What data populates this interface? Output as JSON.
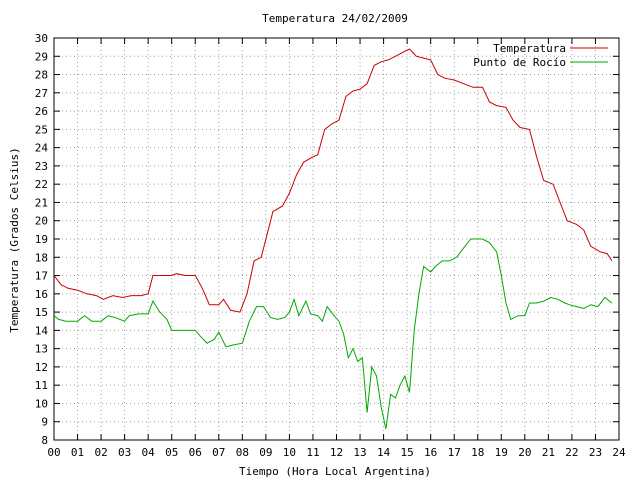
{
  "chart_data": {
    "type": "line",
    "title": "Temperatura 24/02/2009",
    "xlabel": "Tiempo (Hora Local Argentina)",
    "ylabel": "Temperatura (Grados Celsius)",
    "xlim": [
      0,
      24
    ],
    "ylim": [
      8,
      30
    ],
    "x_ticks": [
      "00",
      "01",
      "02",
      "03",
      "04",
      "05",
      "06",
      "07",
      "08",
      "09",
      "10",
      "11",
      "12",
      "13",
      "14",
      "15",
      "16",
      "17",
      "18",
      "19",
      "20",
      "21",
      "22",
      "23",
      "24"
    ],
    "y_ticks": [
      "8",
      "9",
      "10",
      "11",
      "12",
      "13",
      "14",
      "15",
      "16",
      "17",
      "18",
      "19",
      "20",
      "21",
      "22",
      "23",
      "24",
      "25",
      "26",
      "27",
      "28",
      "29",
      "30"
    ],
    "grid": true,
    "legend_position": "top-right",
    "series": [
      {
        "name": "Temperatura",
        "color": "#cc0000",
        "points": [
          [
            0,
            17.0
          ],
          [
            0.3,
            16.5
          ],
          [
            0.6,
            16.3
          ],
          [
            1.0,
            16.2
          ],
          [
            1.4,
            16.0
          ],
          [
            1.8,
            15.9
          ],
          [
            2.1,
            15.7
          ],
          [
            2.5,
            15.9
          ],
          [
            2.9,
            15.8
          ],
          [
            3.3,
            15.9
          ],
          [
            3.7,
            15.9
          ],
          [
            4.0,
            16.0
          ],
          [
            4.2,
            17.0
          ],
          [
            4.6,
            17.0
          ],
          [
            5.0,
            17.0
          ],
          [
            5.2,
            17.1
          ],
          [
            5.6,
            17.0
          ],
          [
            6.0,
            17.0
          ],
          [
            6.3,
            16.3
          ],
          [
            6.6,
            15.4
          ],
          [
            7.0,
            15.4
          ],
          [
            7.2,
            15.7
          ],
          [
            7.5,
            15.1
          ],
          [
            7.9,
            15.0
          ],
          [
            8.2,
            16.0
          ],
          [
            8.5,
            17.8
          ],
          [
            8.8,
            18.0
          ],
          [
            9.0,
            19.0
          ],
          [
            9.3,
            20.5
          ],
          [
            9.7,
            20.8
          ],
          [
            10.0,
            21.5
          ],
          [
            10.3,
            22.5
          ],
          [
            10.6,
            23.2
          ],
          [
            11.0,
            23.5
          ],
          [
            11.2,
            23.6
          ],
          [
            11.5,
            25.0
          ],
          [
            11.8,
            25.3
          ],
          [
            12.1,
            25.5
          ],
          [
            12.4,
            26.8
          ],
          [
            12.7,
            27.1
          ],
          [
            13.0,
            27.2
          ],
          [
            13.3,
            27.5
          ],
          [
            13.6,
            28.5
          ],
          [
            13.9,
            28.7
          ],
          [
            14.2,
            28.8
          ],
          [
            14.5,
            29.0
          ],
          [
            14.8,
            29.2
          ],
          [
            15.1,
            29.4
          ],
          [
            15.4,
            29.0
          ],
          [
            15.7,
            28.9
          ],
          [
            16.0,
            28.8
          ],
          [
            16.3,
            28.0
          ],
          [
            16.6,
            27.8
          ],
          [
            17.0,
            27.7
          ],
          [
            17.4,
            27.5
          ],
          [
            17.8,
            27.3
          ],
          [
            18.2,
            27.3
          ],
          [
            18.5,
            26.5
          ],
          [
            18.8,
            26.3
          ],
          [
            19.2,
            26.2
          ],
          [
            19.5,
            25.5
          ],
          [
            19.8,
            25.1
          ],
          [
            20.2,
            25.0
          ],
          [
            20.5,
            23.5
          ],
          [
            20.8,
            22.2
          ],
          [
            21.2,
            22.0
          ],
          [
            21.5,
            21.0
          ],
          [
            21.8,
            20.0
          ],
          [
            22.2,
            19.8
          ],
          [
            22.5,
            19.5
          ],
          [
            22.8,
            18.6
          ],
          [
            23.2,
            18.3
          ],
          [
            23.5,
            18.2
          ],
          [
            23.7,
            17.8
          ]
        ]
      },
      {
        "name": "Punto de Rocío",
        "color": "#00aa00",
        "points": [
          [
            0,
            14.8
          ],
          [
            0.2,
            14.6
          ],
          [
            0.5,
            14.5
          ],
          [
            1.0,
            14.5
          ],
          [
            1.3,
            14.8
          ],
          [
            1.6,
            14.5
          ],
          [
            2.0,
            14.5
          ],
          [
            2.3,
            14.8
          ],
          [
            2.6,
            14.7
          ],
          [
            3.0,
            14.5
          ],
          [
            3.2,
            14.8
          ],
          [
            3.6,
            14.9
          ],
          [
            4.0,
            14.9
          ],
          [
            4.2,
            15.6
          ],
          [
            4.5,
            15.0
          ],
          [
            4.8,
            14.6
          ],
          [
            5.0,
            14.0
          ],
          [
            5.5,
            14.0
          ],
          [
            6.0,
            14.0
          ],
          [
            6.2,
            13.7
          ],
          [
            6.5,
            13.3
          ],
          [
            6.8,
            13.5
          ],
          [
            7.0,
            13.9
          ],
          [
            7.3,
            13.1
          ],
          [
            7.6,
            13.2
          ],
          [
            8.0,
            13.3
          ],
          [
            8.3,
            14.5
          ],
          [
            8.6,
            15.3
          ],
          [
            8.9,
            15.3
          ],
          [
            9.2,
            14.7
          ],
          [
            9.5,
            14.6
          ],
          [
            9.8,
            14.7
          ],
          [
            10.0,
            15.0
          ],
          [
            10.2,
            15.7
          ],
          [
            10.4,
            14.8
          ],
          [
            10.7,
            15.6
          ],
          [
            10.9,
            14.9
          ],
          [
            11.2,
            14.8
          ],
          [
            11.4,
            14.5
          ],
          [
            11.6,
            15.3
          ],
          [
            11.9,
            14.8
          ],
          [
            12.1,
            14.5
          ],
          [
            12.3,
            13.8
          ],
          [
            12.5,
            12.5
          ],
          [
            12.7,
            13.0
          ],
          [
            12.9,
            12.3
          ],
          [
            13.1,
            12.5
          ],
          [
            13.3,
            9.5
          ],
          [
            13.5,
            12.0
          ],
          [
            13.7,
            11.5
          ],
          [
            13.9,
            9.8
          ],
          [
            14.1,
            8.6
          ],
          [
            14.3,
            10.5
          ],
          [
            14.5,
            10.3
          ],
          [
            14.7,
            11.0
          ],
          [
            14.9,
            11.5
          ],
          [
            15.1,
            10.6
          ],
          [
            15.3,
            14.0
          ],
          [
            15.5,
            16.0
          ],
          [
            15.7,
            17.5
          ],
          [
            16.0,
            17.2
          ],
          [
            16.2,
            17.5
          ],
          [
            16.5,
            17.8
          ],
          [
            16.8,
            17.8
          ],
          [
            17.1,
            18.0
          ],
          [
            17.4,
            18.5
          ],
          [
            17.7,
            19.0
          ],
          [
            18.0,
            19.0
          ],
          [
            18.2,
            19.0
          ],
          [
            18.5,
            18.8
          ],
          [
            18.8,
            18.3
          ],
          [
            19.0,
            17.0
          ],
          [
            19.2,
            15.5
          ],
          [
            19.4,
            14.6
          ],
          [
            19.7,
            14.8
          ],
          [
            20.0,
            14.8
          ],
          [
            20.2,
            15.5
          ],
          [
            20.5,
            15.5
          ],
          [
            20.8,
            15.6
          ],
          [
            21.1,
            15.8
          ],
          [
            21.4,
            15.7
          ],
          [
            21.7,
            15.5
          ],
          [
            21.9,
            15.4
          ],
          [
            22.2,
            15.3
          ],
          [
            22.5,
            15.2
          ],
          [
            22.8,
            15.4
          ],
          [
            23.1,
            15.3
          ],
          [
            23.4,
            15.8
          ],
          [
            23.7,
            15.5
          ]
        ]
      }
    ]
  }
}
